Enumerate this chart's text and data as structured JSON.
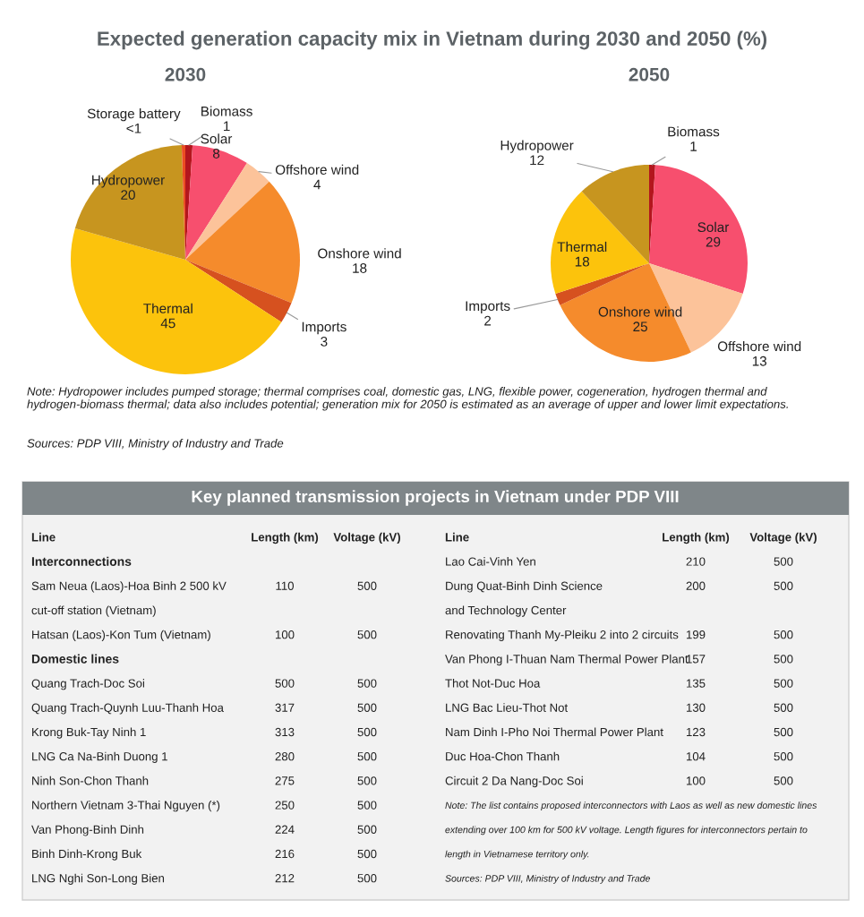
{
  "chart_data": [
    {
      "type": "pie",
      "title": "Expected generation capacity mix in Vietnam during 2030 and 2050 (%)",
      "subtitle": "2030",
      "categories": [
        "Biomass",
        "Solar",
        "Offshore wind",
        "Onshore wind",
        "Imports",
        "Thermal",
        "Hydropower",
        "Storage battery"
      ],
      "values": [
        1,
        8,
        4,
        18,
        3,
        45,
        20,
        0.5
      ],
      "value_labels": [
        "1",
        "8",
        "4",
        "18",
        "3",
        "45",
        "20",
        "<1"
      ],
      "colors": [
        "#b3161d",
        "#f74f6e",
        "#fcc39a",
        "#f58b2c",
        "#d6511f",
        "#fcc30c",
        "#c7951f",
        "#ec4d23"
      ],
      "annotations": [
        "Note: Hydropower includes pumped storage; thermal comprises coal, domestic gas, LNG, flexible power, cogeneration, hydrogen thermal and hydrogen-biomass thermal; data also includes potential; generation mix for 2050 is estimated as an average of upper and lower limit expectations.",
        "Sources: PDP VIII, Ministry of Industry and Trade"
      ]
    },
    {
      "type": "pie",
      "title": "2050",
      "categories": [
        "Biomass",
        "Solar",
        "Offshore wind",
        "Onshore wind",
        "Imports",
        "Thermal",
        "Hydropower"
      ],
      "values": [
        1,
        29,
        13,
        25,
        2,
        18,
        12
      ],
      "value_labels": [
        "1",
        "29",
        "13",
        "25",
        "2",
        "18",
        "12"
      ],
      "colors": [
        "#b3161d",
        "#f74f6e",
        "#fcc39a",
        "#f58b2c",
        "#d6511f",
        "#fcc30c",
        "#c7951f"
      ]
    },
    {
      "type": "other",
      "title": "Key planned transmission projects in Vietnam under PDP VIII",
      "annotations": [
        "Line\tLength (km)\tVoltage (kV)",
        "Interconnections",
        "Sam Neua (Laos)-Hoa Binh 2 500 kV\ncut-off station (Vietnam)\t110\t500",
        "Hatsan (Laos)-Kon Tum (Vietnam)\t100\t500",
        "Domestic lines",
        "Quang Trach-Doc Soi\t500\t500",
        "Quang Trach-Quynh Luu-Thanh Hoa\t317\t500",
        "Krong Buk-Tay Ninh 1\t313\t500",
        "LNG Ca Na-Binh Duong 1\t280\t500",
        "Ninh Son-Chon Thanh\t275\t500",
        "Northern Vietnam 3-Thai Nguyen (*)\t250\t500",
        "Van Phong-Binh Dinh\t224\t500",
        "Binh Dinh-Krong Buk\t216\t500",
        "LNG Nghi Son-Long Bien\t212\t500"
      ]
    },
    {
      "type": "other",
      "annotations": [
        "Line\tLength (km)\tVoltage (kV)",
        "Lao Cai-Vinh Yen\t210\t500",
        "Dung Quat-Binh Dinh Science\nand Technology Center\t200\t500",
        "Renovating Thanh My-Pleiku 2 into 2 circuits\t199\t500",
        "Van Phong I-Thuan Nam Thermal Power Plant\t157\t500",
        "Thot Not-Duc Hoa\t135\t500",
        "LNG Bac Lieu-Thot Not\t130\t500",
        "Nam Dinh I-Pho Noi Thermal Power Plant\t123\t500",
        "Duc Hoa-Chon Thanh\t104\t500",
        "Circuit 2 Da Nang-Doc Soi\t100\t500",
        "Note: The list contains proposed interconnectors with Laos as well as new domestic lines\nextending over 100 km for 500 kV voltage. Length figures for interconnectors pertain to\nlength in Vietnamese territory only.",
        "Sources: PDP VIII, Ministry of Industry and Trade"
      ]
    }
  ]
}
